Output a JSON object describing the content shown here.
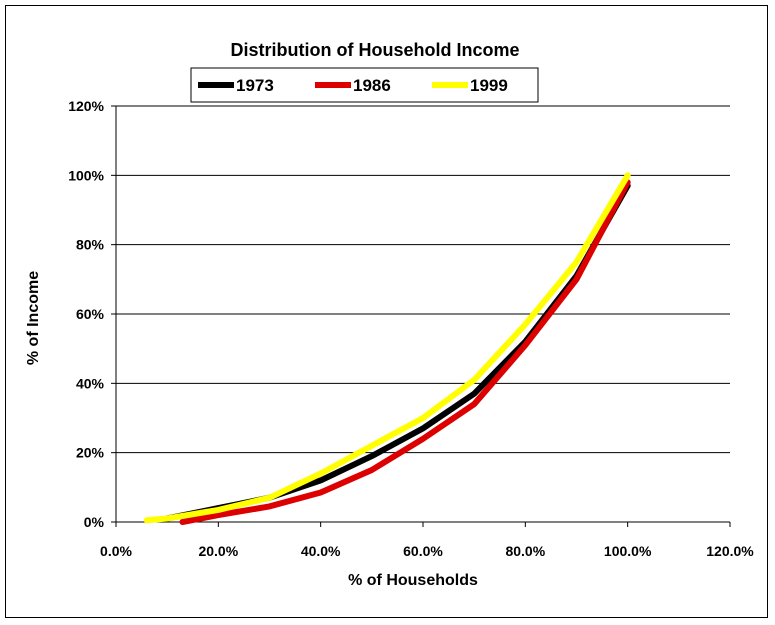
{
  "chart_data": {
    "type": "line",
    "title": "Distribution of Household Income",
    "xlabel": "% of Households",
    "ylabel": "% of Income",
    "xlim": [
      0,
      120
    ],
    "ylim": [
      0,
      120
    ],
    "x_ticks": [
      "0.0%",
      "20.0%",
      "40.0%",
      "60.0%",
      "80.0%",
      "100.0%",
      "120.0%"
    ],
    "y_ticks": [
      "0%",
      "20%",
      "40%",
      "60%",
      "80%",
      "100%",
      "120%"
    ],
    "grid": "horizontal major gridlines",
    "legend_position": "top",
    "series": [
      {
        "name": "1973",
        "color": "#000000",
        "x": [
          10,
          20,
          30,
          40,
          50,
          60,
          70,
          80,
          90,
          100
        ],
        "y": [
          1,
          4,
          7,
          12,
          19,
          27,
          37,
          52,
          71,
          97
        ]
      },
      {
        "name": "1986",
        "color": "#dd0000",
        "x": [
          13,
          20,
          30,
          40,
          50,
          60,
          70,
          80,
          90,
          100
        ],
        "y": [
          0,
          2,
          4.5,
          8.5,
          15,
          24,
          34,
          51,
          70,
          98
        ]
      },
      {
        "name": "1999",
        "color": "#ffff00",
        "x": [
          6,
          10,
          20,
          30,
          40,
          50,
          60,
          70,
          80,
          90,
          100
        ],
        "y": [
          0.5,
          1,
          3.5,
          7,
          14,
          22,
          30,
          41,
          57,
          75,
          100
        ]
      }
    ]
  }
}
